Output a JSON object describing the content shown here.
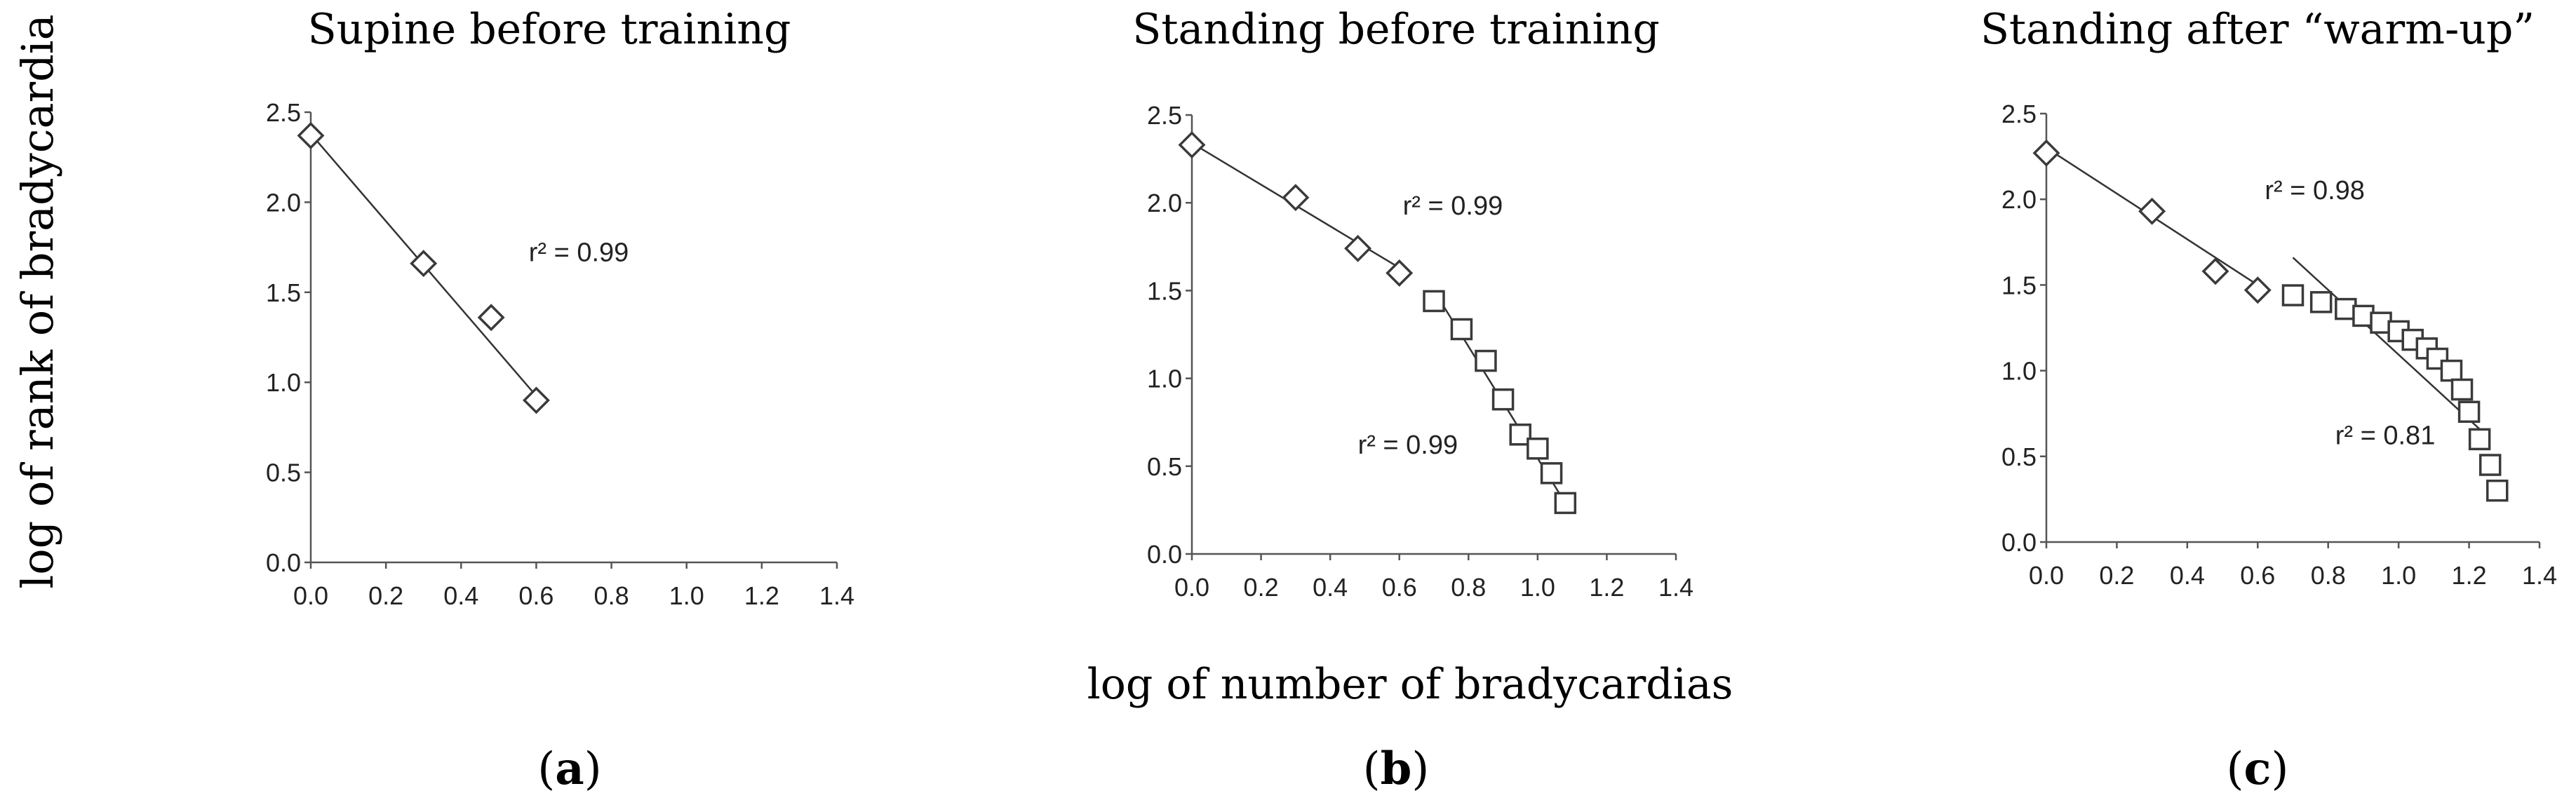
{
  "figure": {
    "ylabel": "log of rank of bradycardia",
    "xlabel": "log of number of bradycardias"
  },
  "chart_data": [
    {
      "type": "scatter",
      "panel_label": "(a)",
      "panel_letter": "a",
      "title": "Supine before training",
      "xlim": [
        0,
        1.4
      ],
      "ylim": [
        0,
        2.5
      ],
      "xticks": [
        "0.0",
        "0.2",
        "0.4",
        "0.6",
        "0.8",
        "1.0",
        "1.2",
        "1.4"
      ],
      "yticks": [
        "0.0",
        "0.5",
        "1.0",
        "1.5",
        "2.0",
        "2.5"
      ],
      "series": [
        {
          "marker": "diamond",
          "points": [
            [
              0.0,
              2.37
            ],
            [
              0.3,
              1.66
            ],
            [
              0.48,
              1.36
            ],
            [
              0.6,
              0.9
            ]
          ]
        }
      ],
      "fits": [
        {
          "x1": 0.0,
          "y1": 2.38,
          "x2": 0.61,
          "y2": 0.9
        }
      ],
      "annotations": [
        {
          "text": "r² = 0.99",
          "x": 0.58,
          "y": 1.72
        }
      ]
    },
    {
      "type": "scatter",
      "panel_label": "(b)",
      "panel_letter": "b",
      "title": "Standing before training",
      "xlim": [
        0,
        1.4
      ],
      "ylim": [
        0,
        2.5
      ],
      "xticks": [
        "0.0",
        "0.2",
        "0.4",
        "0.6",
        "0.8",
        "1.0",
        "1.2",
        "1.4"
      ],
      "yticks": [
        "0.0",
        "0.5",
        "1.0",
        "1.5",
        "2.0",
        "2.5"
      ],
      "series": [
        {
          "marker": "diamond",
          "points": [
            [
              0.0,
              2.33
            ],
            [
              0.3,
              2.03
            ],
            [
              0.48,
              1.74
            ],
            [
              0.6,
              1.6
            ]
          ]
        },
        {
          "marker": "square",
          "points": [
            [
              0.7,
              1.44
            ],
            [
              0.78,
              1.28
            ],
            [
              0.85,
              1.1
            ],
            [
              0.9,
              0.88
            ],
            [
              0.95,
              0.68
            ],
            [
              1.0,
              0.6
            ],
            [
              1.04,
              0.46
            ],
            [
              1.08,
              0.29
            ]
          ]
        }
      ],
      "fits": [
        {
          "x1": 0.0,
          "y1": 2.34,
          "x2": 0.6,
          "y2": 1.63
        },
        {
          "x1": 0.7,
          "y1": 1.5,
          "x2": 1.08,
          "y2": 0.29
        }
      ],
      "annotations": [
        {
          "text": "r² = 0.99",
          "x": 0.61,
          "y": 1.98
        },
        {
          "text": "r² = 0.99",
          "x": 0.48,
          "y": 0.62
        }
      ]
    },
    {
      "type": "scatter",
      "panel_label": "(c)",
      "panel_letter": "c",
      "title": "Standing after “warm-up”",
      "xlim": [
        0,
        1.4
      ],
      "ylim": [
        0,
        2.5
      ],
      "xticks": [
        "0.0",
        "0.2",
        "0.4",
        "0.6",
        "0.8",
        "1.0",
        "1.2",
        "1.4"
      ],
      "yticks": [
        "0.0",
        "0.5",
        "1.0",
        "1.5",
        "2.0",
        "2.5"
      ],
      "series": [
        {
          "marker": "diamond",
          "points": [
            [
              0.0,
              2.27
            ],
            [
              0.3,
              1.93
            ],
            [
              0.48,
              1.58
            ],
            [
              0.6,
              1.47
            ]
          ]
        },
        {
          "marker": "square",
          "points": [
            [
              0.7,
              1.44
            ],
            [
              0.78,
              1.4
            ],
            [
              0.85,
              1.36
            ],
            [
              0.9,
              1.32
            ],
            [
              0.95,
              1.28
            ],
            [
              1.0,
              1.23
            ],
            [
              1.04,
              1.18
            ],
            [
              1.08,
              1.13
            ],
            [
              1.11,
              1.07
            ],
            [
              1.15,
              1.0
            ],
            [
              1.18,
              0.89
            ],
            [
              1.2,
              0.76
            ],
            [
              1.23,
              0.6
            ],
            [
              1.26,
              0.45
            ],
            [
              1.28,
              0.3
            ]
          ]
        }
      ],
      "fits": [
        {
          "x1": 0.0,
          "y1": 2.3,
          "x2": 0.6,
          "y2": 1.5
        },
        {
          "x1": 0.7,
          "y1": 1.66,
          "x2": 1.24,
          "y2": 0.64
        }
      ],
      "annotations": [
        {
          "text": "r² = 0.98",
          "x": 0.62,
          "y": 2.05
        },
        {
          "text": "r² = 0.81",
          "x": 0.82,
          "y": 0.62
        }
      ]
    }
  ]
}
